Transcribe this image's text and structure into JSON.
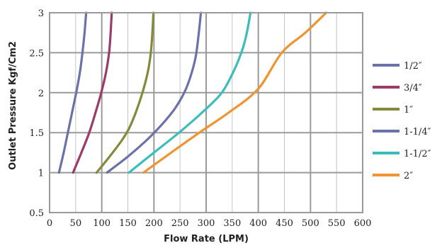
{
  "chart_data": {
    "type": "line",
    "title": "",
    "xlabel": "Flow Rate (LPM)",
    "ylabel": "Outlet Pressure Kgf/Cm2",
    "xlim": [
      0,
      600
    ],
    "ylim": [
      0.5,
      3
    ],
    "x_ticks": [
      "0",
      "50",
      "100",
      "150",
      "200",
      "250",
      "300",
      "350",
      "400",
      "450",
      "500",
      "550",
      "600"
    ],
    "y_ticks": [
      "0.5",
      "1",
      "1.5",
      "2",
      "2.5",
      "3"
    ],
    "grid": true,
    "legend_position": "right",
    "series": [
      {
        "name": "1/2″",
        "color": "#6a72a8",
        "points": [
          [
            18,
            1
          ],
          [
            27,
            1.25
          ],
          [
            35,
            1.5
          ],
          [
            43,
            1.75
          ],
          [
            51,
            2
          ],
          [
            58,
            2.25
          ],
          [
            63,
            2.5
          ],
          [
            67,
            2.75
          ],
          [
            70,
            3
          ]
        ]
      },
      {
        "name": "3/4″",
        "color": "#9b3a6c",
        "points": [
          [
            45,
            1
          ],
          [
            61,
            1.25
          ],
          [
            76,
            1.5
          ],
          [
            88,
            1.75
          ],
          [
            99,
            2
          ],
          [
            108,
            2.25
          ],
          [
            114,
            2.5
          ],
          [
            117,
            2.75
          ],
          [
            119,
            3
          ]
        ]
      },
      {
        "name": "1″",
        "color": "#858a3b",
        "points": [
          [
            90,
            1
          ],
          [
            115,
            1.2
          ],
          [
            138,
            1.4
          ],
          [
            152,
            1.55
          ],
          [
            165,
            1.75
          ],
          [
            178,
            2
          ],
          [
            188,
            2.25
          ],
          [
            194,
            2.5
          ],
          [
            197,
            2.75
          ],
          [
            199,
            3
          ]
        ]
      },
      {
        "name": "1-1/4″",
        "color": "#6a72a8",
        "points": [
          [
            110,
            1
          ],
          [
            150,
            1.2
          ],
          [
            185,
            1.4
          ],
          [
            215,
            1.6
          ],
          [
            240,
            1.8
          ],
          [
            258,
            2
          ],
          [
            270,
            2.2
          ],
          [
            280,
            2.45
          ],
          [
            286,
            2.75
          ],
          [
            290,
            3
          ]
        ]
      },
      {
        "name": "1-1/2″",
        "color": "#3bbdbb",
        "points": [
          [
            152,
            1
          ],
          [
            200,
            1.25
          ],
          [
            248,
            1.5
          ],
          [
            292,
            1.75
          ],
          [
            330,
            2
          ],
          [
            355,
            2.3
          ],
          [
            370,
            2.55
          ],
          [
            378,
            2.75
          ],
          [
            385,
            3
          ]
        ]
      },
      {
        "name": "2″",
        "color": "#ef9431",
        "points": [
          [
            180,
            1
          ],
          [
            233,
            1.25
          ],
          [
            287,
            1.5
          ],
          [
            343,
            1.75
          ],
          [
            400,
            2.05
          ],
          [
            445,
            2.5
          ],
          [
            490,
            2.75
          ],
          [
            530,
            3
          ]
        ]
      }
    ]
  }
}
